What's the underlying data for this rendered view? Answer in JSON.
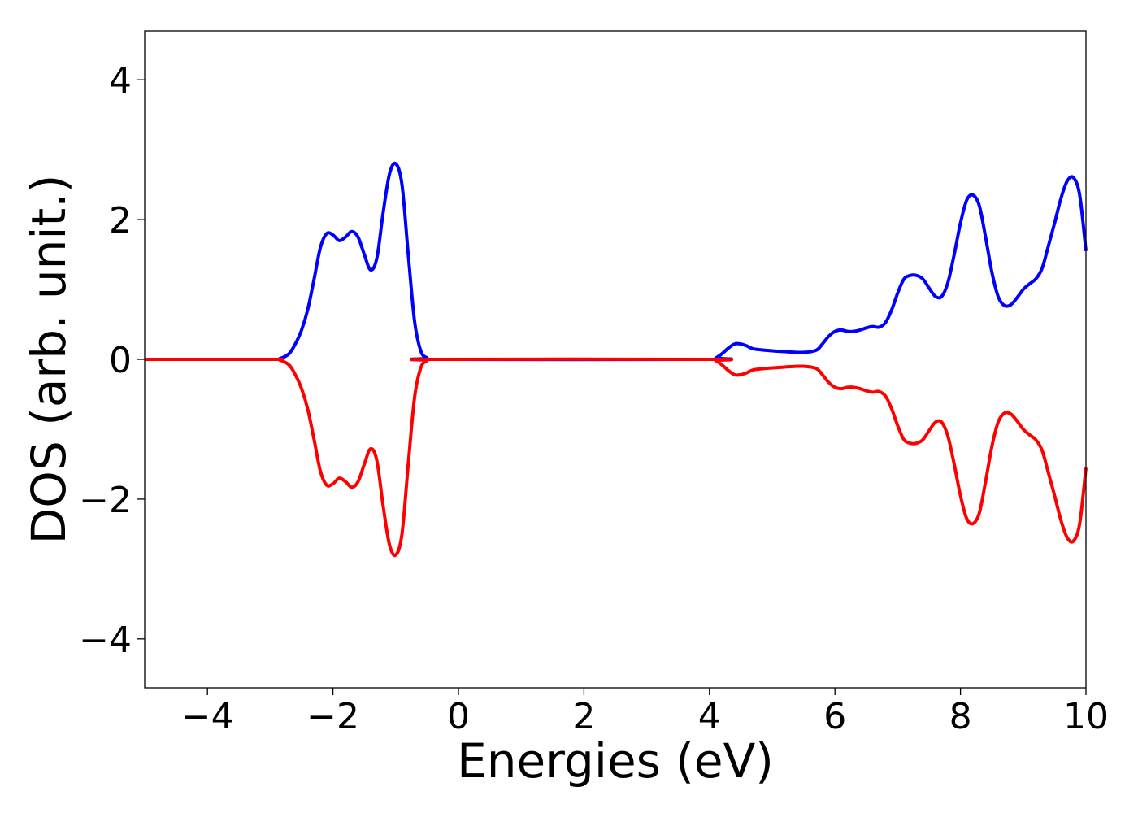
{
  "chart_data": {
    "type": "line",
    "title": "",
    "xlabel": "Energies (eV)",
    "ylabel": "DOS (arb. unit.)",
    "xlim": [
      -5,
      10
    ],
    "ylim": [
      -4.7,
      4.7
    ],
    "xticks": [
      -4,
      -2,
      0,
      2,
      4,
      6,
      8,
      10
    ],
    "xtick_labels": [
      "−4",
      "−2",
      "0",
      "2",
      "4",
      "6",
      "8",
      "10"
    ],
    "yticks": [
      4,
      2,
      0,
      -2,
      -4
    ],
    "ytick_labels": [
      "4",
      "2",
      "0",
      "−2",
      "−4"
    ],
    "grid": false,
    "legend": false,
    "series": [
      {
        "color": "#0000ff",
        "points": [
          [
            -5,
            0
          ],
          [
            -3.0,
            0
          ],
          [
            -2.85,
            0.01
          ],
          [
            -2.7,
            0.08
          ],
          [
            -2.6,
            0.22
          ],
          [
            -2.5,
            0.42
          ],
          [
            -2.4,
            0.72
          ],
          [
            -2.3,
            1.15
          ],
          [
            -2.2,
            1.6
          ],
          [
            -2.1,
            1.8
          ],
          [
            -2.0,
            1.78
          ],
          [
            -1.9,
            1.7
          ],
          [
            -1.8,
            1.75
          ],
          [
            -1.7,
            1.83
          ],
          [
            -1.6,
            1.75
          ],
          [
            -1.5,
            1.5
          ],
          [
            -1.4,
            1.28
          ],
          [
            -1.3,
            1.45
          ],
          [
            -1.2,
            2.1
          ],
          [
            -1.1,
            2.65
          ],
          [
            -1.0,
            2.8
          ],
          [
            -0.9,
            2.5
          ],
          [
            -0.8,
            1.5
          ],
          [
            -0.7,
            0.55
          ],
          [
            -0.6,
            0.12
          ],
          [
            -0.5,
            0.02
          ],
          [
            -0.4,
            0
          ],
          [
            4.0,
            0
          ],
          [
            4.1,
            0.02
          ],
          [
            4.2,
            0.08
          ],
          [
            4.3,
            0.16
          ],
          [
            4.4,
            0.22
          ],
          [
            4.5,
            0.22
          ],
          [
            4.6,
            0.19
          ],
          [
            4.7,
            0.15
          ],
          [
            4.9,
            0.13
          ],
          [
            5.2,
            0.11
          ],
          [
            5.5,
            0.1
          ],
          [
            5.7,
            0.13
          ],
          [
            5.8,
            0.22
          ],
          [
            5.9,
            0.33
          ],
          [
            6.0,
            0.4
          ],
          [
            6.1,
            0.42
          ],
          [
            6.2,
            0.4
          ],
          [
            6.3,
            0.4
          ],
          [
            6.4,
            0.42
          ],
          [
            6.5,
            0.45
          ],
          [
            6.6,
            0.47
          ],
          [
            6.7,
            0.46
          ],
          [
            6.8,
            0.52
          ],
          [
            6.9,
            0.7
          ],
          [
            7.0,
            0.95
          ],
          [
            7.1,
            1.15
          ],
          [
            7.2,
            1.2
          ],
          [
            7.3,
            1.2
          ],
          [
            7.4,
            1.15
          ],
          [
            7.5,
            1.02
          ],
          [
            7.6,
            0.9
          ],
          [
            7.7,
            0.9
          ],
          [
            7.8,
            1.1
          ],
          [
            7.9,
            1.5
          ],
          [
            8.0,
            1.95
          ],
          [
            8.1,
            2.28
          ],
          [
            8.2,
            2.35
          ],
          [
            8.3,
            2.2
          ],
          [
            8.4,
            1.75
          ],
          [
            8.5,
            1.25
          ],
          [
            8.6,
            0.9
          ],
          [
            8.7,
            0.77
          ],
          [
            8.8,
            0.78
          ],
          [
            8.9,
            0.88
          ],
          [
            9.0,
            1.0
          ],
          [
            9.1,
            1.08
          ],
          [
            9.2,
            1.15
          ],
          [
            9.3,
            1.3
          ],
          [
            9.4,
            1.62
          ],
          [
            9.5,
            1.95
          ],
          [
            9.6,
            2.3
          ],
          [
            9.7,
            2.55
          ],
          [
            9.8,
            2.6
          ],
          [
            9.9,
            2.35
          ],
          [
            10.0,
            1.55
          ]
        ]
      },
      {
        "color": "#ff0000",
        "points": [
          [
            -5,
            0
          ],
          [
            -3.0,
            0
          ],
          [
            -2.85,
            -0.01
          ],
          [
            -2.7,
            -0.08
          ],
          [
            -2.6,
            -0.22
          ],
          [
            -2.5,
            -0.42
          ],
          [
            -2.4,
            -0.72
          ],
          [
            -2.3,
            -1.15
          ],
          [
            -2.2,
            -1.6
          ],
          [
            -2.1,
            -1.8
          ],
          [
            -2.0,
            -1.78
          ],
          [
            -1.9,
            -1.7
          ],
          [
            -1.8,
            -1.75
          ],
          [
            -1.7,
            -1.83
          ],
          [
            -1.6,
            -1.75
          ],
          [
            -1.5,
            -1.5
          ],
          [
            -1.4,
            -1.28
          ],
          [
            -1.3,
            -1.45
          ],
          [
            -1.2,
            -2.1
          ],
          [
            -1.1,
            -2.65
          ],
          [
            -1.0,
            -2.8
          ],
          [
            -0.9,
            -2.5
          ],
          [
            -0.8,
            -1.5
          ],
          [
            -0.7,
            -0.55
          ],
          [
            -0.6,
            -0.12
          ],
          [
            -0.5,
            -0.02
          ],
          [
            -0.4,
            0
          ],
          [
            4.0,
            0
          ],
          [
            4.1,
            -0.02
          ],
          [
            4.2,
            -0.08
          ],
          [
            4.3,
            -0.16
          ],
          [
            4.4,
            -0.22
          ],
          [
            4.5,
            -0.22
          ],
          [
            4.6,
            -0.19
          ],
          [
            4.7,
            -0.15
          ],
          [
            4.9,
            -0.13
          ],
          [
            5.2,
            -0.11
          ],
          [
            5.5,
            -0.1
          ],
          [
            5.7,
            -0.13
          ],
          [
            5.8,
            -0.22
          ],
          [
            5.9,
            -0.33
          ],
          [
            6.0,
            -0.4
          ],
          [
            6.1,
            -0.42
          ],
          [
            6.2,
            -0.4
          ],
          [
            6.3,
            -0.4
          ],
          [
            6.4,
            -0.42
          ],
          [
            6.5,
            -0.45
          ],
          [
            6.6,
            -0.47
          ],
          [
            6.7,
            -0.46
          ],
          [
            6.8,
            -0.52
          ],
          [
            6.9,
            -0.7
          ],
          [
            7.0,
            -0.95
          ],
          [
            7.1,
            -1.15
          ],
          [
            7.2,
            -1.2
          ],
          [
            7.3,
            -1.2
          ],
          [
            7.4,
            -1.15
          ],
          [
            7.5,
            -1.02
          ],
          [
            7.6,
            -0.9
          ],
          [
            7.7,
            -0.9
          ],
          [
            7.8,
            -1.1
          ],
          [
            7.9,
            -1.5
          ],
          [
            8.0,
            -1.95
          ],
          [
            8.1,
            -2.28
          ],
          [
            8.2,
            -2.35
          ],
          [
            8.3,
            -2.2
          ],
          [
            8.4,
            -1.75
          ],
          [
            8.5,
            -1.25
          ],
          [
            8.6,
            -0.9
          ],
          [
            8.7,
            -0.77
          ],
          [
            8.8,
            -0.78
          ],
          [
            8.9,
            -0.88
          ],
          [
            9.0,
            -1.0
          ],
          [
            9.1,
            -1.08
          ],
          [
            9.2,
            -1.15
          ],
          [
            9.3,
            -1.3
          ],
          [
            9.4,
            -1.62
          ],
          [
            9.5,
            -1.95
          ],
          [
            9.6,
            -2.3
          ],
          [
            9.7,
            -2.55
          ],
          [
            9.8,
            -2.6
          ],
          [
            9.9,
            -2.35
          ],
          [
            10.0,
            -1.55
          ]
        ]
      }
    ]
  }
}
